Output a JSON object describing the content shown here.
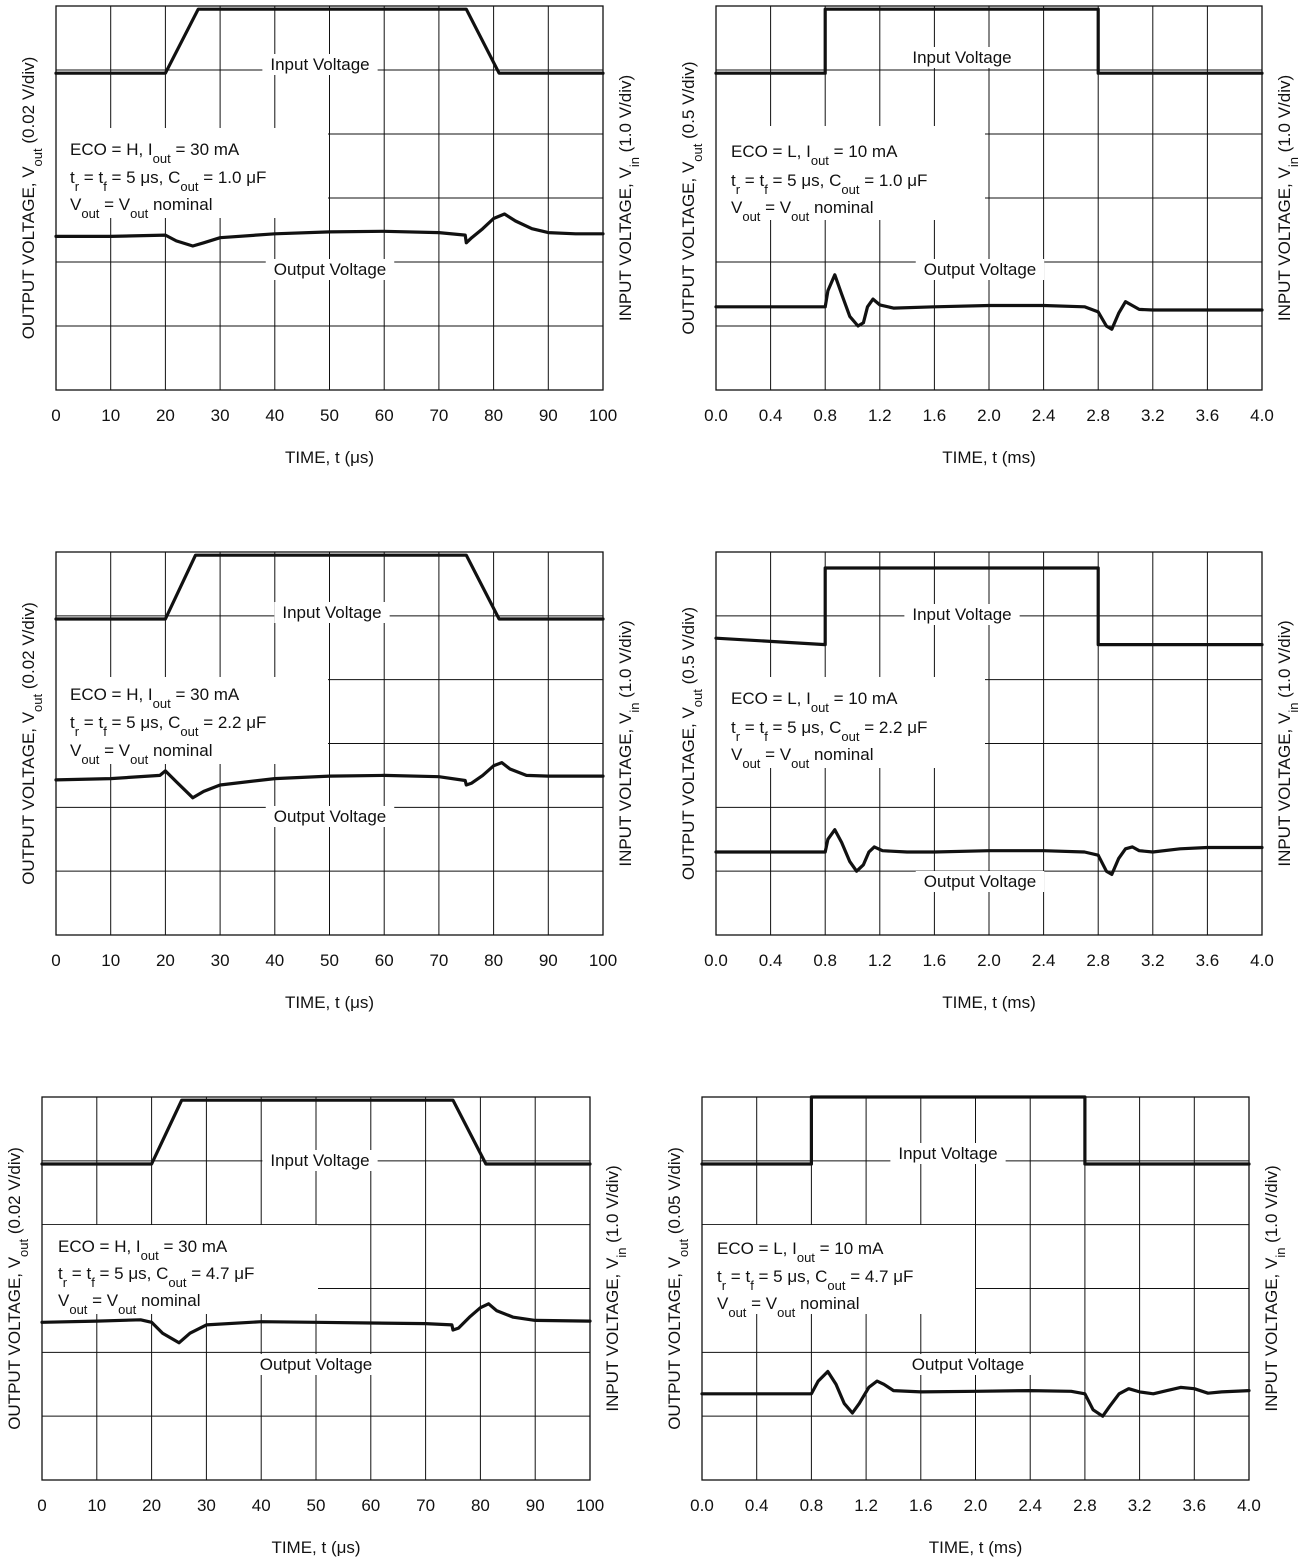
{
  "chart_data": [
    {
      "type": "line",
      "title": "",
      "xlabel": "TIME, t (μs)",
      "ylabel_left": {
        "main": "OUTPUT VOLTAGE, V",
        "sub": "out",
        "tail": " (0.02 V/div)"
      },
      "ylabel_right": {
        "main": "INPUT VOLTAGE, V",
        "sub": "in",
        "tail": " (1.0 V/div)"
      },
      "x_ticks": [
        "0",
        "10",
        "20",
        "30",
        "40",
        "50",
        "60",
        "70",
        "80",
        "90",
        "100"
      ],
      "xlim": [
        0,
        100
      ],
      "ylim": [
        0,
        6
      ],
      "grid": true,
      "annotation": [
        [
          {
            "t": "ECO = H, I"
          },
          {
            "t": "out",
            "sub": true
          },
          {
            "t": " = 30 mA"
          }
        ],
        [
          {
            "t": "t"
          },
          {
            "t": "r",
            "sub": true
          },
          {
            "t": " = t"
          },
          {
            "t": "f",
            "sub": true
          },
          {
            "t": " = 5 μs, C"
          },
          {
            "t": "out",
            "sub": true
          },
          {
            "t": " = 1.0 μF"
          }
        ],
        [
          {
            "t": "V"
          },
          {
            "t": "out",
            "sub": true
          },
          {
            "t": " = V"
          },
          {
            "t": "out",
            "sub": true
          },
          {
            "t": " nominal"
          }
        ]
      ],
      "series": [
        {
          "name": "Input Voltage",
          "x": [
            0,
            20,
            26,
            75,
            81,
            100
          ],
          "y": [
            4.95,
            4.95,
            5.95,
            5.95,
            4.95,
            4.95
          ]
        },
        {
          "name": "Output Voltage",
          "x": [
            0,
            10,
            20,
            22,
            25,
            27,
            30,
            40,
            50,
            60,
            70,
            74.8,
            75,
            76,
            78,
            80,
            82,
            84,
            87,
            90,
            95,
            100
          ],
          "y": [
            2.4,
            2.4,
            2.42,
            2.33,
            2.25,
            2.3,
            2.38,
            2.44,
            2.47,
            2.48,
            2.46,
            2.42,
            2.3,
            2.38,
            2.52,
            2.68,
            2.75,
            2.64,
            2.52,
            2.46,
            2.44,
            2.44
          ]
        }
      ]
    },
    {
      "type": "line",
      "title": "",
      "xlabel": "TIME, t (ms)",
      "ylabel_left": {
        "main": "OUTPUT VOLTAGE, V",
        "sub": "out",
        "tail": " (0.5 V/div)"
      },
      "ylabel_right": {
        "main": "INPUT VOLTAGE, V",
        "sub": "in",
        "tail": " (1.0 V/div)"
      },
      "x_ticks": [
        "0.0",
        "0.4",
        "0.8",
        "1.2",
        "1.6",
        "2.0",
        "2.4",
        "2.8",
        "3.2",
        "3.6",
        "4.0"
      ],
      "xlim": [
        0,
        4.0
      ],
      "ylim": [
        0,
        6
      ],
      "grid": true,
      "annotation": [
        [
          {
            "t": "ECO = L, I"
          },
          {
            "t": "out",
            "sub": true
          },
          {
            "t": " = 10 mA"
          }
        ],
        [
          {
            "t": "t"
          },
          {
            "t": "r",
            "sub": true
          },
          {
            "t": " = t"
          },
          {
            "t": "f",
            "sub": true
          },
          {
            "t": " = 5 μs, C"
          },
          {
            "t": "out",
            "sub": true
          },
          {
            "t": " = 1.0 μF"
          }
        ],
        [
          {
            "t": "V"
          },
          {
            "t": "out",
            "sub": true
          },
          {
            "t": " = V"
          },
          {
            "t": "out",
            "sub": true
          },
          {
            "t": " nominal"
          }
        ]
      ],
      "series": [
        {
          "name": "Input Voltage",
          "x": [
            0,
            0.8,
            0.8,
            2.8,
            2.8,
            4.0
          ],
          "y": [
            4.95,
            4.95,
            5.95,
            5.95,
            4.95,
            4.95
          ]
        },
        {
          "name": "Output Voltage",
          "x": [
            0,
            0.4,
            0.8,
            0.82,
            0.87,
            0.92,
            0.98,
            1.04,
            1.08,
            1.11,
            1.15,
            1.2,
            1.3,
            1.6,
            2.0,
            2.4,
            2.7,
            2.8,
            2.86,
            2.9,
            2.95,
            3.0,
            3.05,
            3.1,
            3.2,
            3.6,
            4.0
          ],
          "y": [
            1.3,
            1.3,
            1.3,
            1.55,
            1.8,
            1.5,
            1.15,
            1.0,
            1.05,
            1.3,
            1.42,
            1.33,
            1.28,
            1.3,
            1.32,
            1.32,
            1.3,
            1.22,
            1.0,
            0.95,
            1.2,
            1.38,
            1.32,
            1.26,
            1.25,
            1.25,
            1.25
          ]
        }
      ]
    },
    {
      "type": "line",
      "title": "",
      "xlabel": "TIME, t (μs)",
      "ylabel_left": {
        "main": "OUTPUT VOLTAGE, V",
        "sub": "out",
        "tail": " (0.02 V/div)"
      },
      "ylabel_right": {
        "main": "INPUT VOLTAGE, V",
        "sub": "in",
        "tail": " (1.0 V/div)"
      },
      "x_ticks": [
        "0",
        "10",
        "20",
        "30",
        "40",
        "50",
        "60",
        "70",
        "80",
        "90",
        "100"
      ],
      "xlim": [
        0,
        100
      ],
      "ylim": [
        0,
        6
      ],
      "grid": true,
      "annotation": [
        [
          {
            "t": "ECO = H, I"
          },
          {
            "t": "out",
            "sub": true
          },
          {
            "t": " = 30 mA"
          }
        ],
        [
          {
            "t": "t"
          },
          {
            "t": "r",
            "sub": true
          },
          {
            "t": " = t"
          },
          {
            "t": "f",
            "sub": true
          },
          {
            "t": " = 5 μs, C"
          },
          {
            "t": "out",
            "sub": true
          },
          {
            "t": " = 2.2 μF"
          }
        ],
        [
          {
            "t": "V"
          },
          {
            "t": "out",
            "sub": true
          },
          {
            "t": " = V"
          },
          {
            "t": "out",
            "sub": true
          },
          {
            "t": " nominal"
          }
        ]
      ],
      "series": [
        {
          "name": "Input Voltage",
          "x": [
            0,
            20,
            25.5,
            75,
            81,
            100
          ],
          "y": [
            4.95,
            4.95,
            5.95,
            5.95,
            4.95,
            4.95
          ]
        },
        {
          "name": "Output Voltage",
          "x": [
            0,
            10,
            19,
            20,
            22,
            25,
            27,
            30,
            40,
            50,
            60,
            70,
            74.8,
            75,
            76,
            78,
            80,
            81.5,
            83,
            86,
            90,
            100
          ],
          "y": [
            2.43,
            2.45,
            2.5,
            2.57,
            2.4,
            2.15,
            2.25,
            2.35,
            2.45,
            2.49,
            2.5,
            2.48,
            2.42,
            2.35,
            2.38,
            2.5,
            2.65,
            2.7,
            2.6,
            2.5,
            2.49,
            2.49
          ]
        }
      ]
    },
    {
      "type": "line",
      "title": "",
      "xlabel": "TIME, t (ms)",
      "ylabel_left": {
        "main": "OUTPUT VOLTAGE, V",
        "sub": "out",
        "tail": " (0.5 V/div)"
      },
      "ylabel_right": {
        "main": "INPUT VOLTAGE, V",
        "sub": "in",
        "tail": " (1.0 V/div)"
      },
      "x_ticks": [
        "0.0",
        "0.4",
        "0.8",
        "1.2",
        "1.6",
        "2.0",
        "2.4",
        "2.8",
        "3.2",
        "3.6",
        "4.0"
      ],
      "xlim": [
        0,
        4.0
      ],
      "ylim": [
        0,
        6
      ],
      "grid": true,
      "annotation": [
        [
          {
            "t": "ECO = L, I"
          },
          {
            "t": "out",
            "sub": true
          },
          {
            "t": " = 10 mA"
          }
        ],
        [
          {
            "t": "t"
          },
          {
            "t": "r",
            "sub": true
          },
          {
            "t": " = t"
          },
          {
            "t": "f",
            "sub": true
          },
          {
            "t": " = 5 μs, C"
          },
          {
            "t": "out",
            "sub": true
          },
          {
            "t": " = 2.2 μF"
          }
        ],
        [
          {
            "t": "V"
          },
          {
            "t": "out",
            "sub": true
          },
          {
            "t": " = V"
          },
          {
            "t": "out",
            "sub": true
          },
          {
            "t": " nominal"
          }
        ]
      ],
      "series": [
        {
          "name": "Input Voltage",
          "x": [
            0,
            0.8,
            0.8,
            2.8,
            2.8,
            4.0
          ],
          "y": [
            4.65,
            4.55,
            5.75,
            5.75,
            4.55,
            4.55
          ]
        },
        {
          "name": "Output Voltage",
          "x": [
            0,
            0.4,
            0.8,
            0.82,
            0.87,
            0.92,
            0.98,
            1.03,
            1.08,
            1.12,
            1.16,
            1.22,
            1.4,
            1.6,
            2.0,
            2.4,
            2.7,
            2.8,
            2.86,
            2.9,
            2.95,
            3.0,
            3.05,
            3.1,
            3.2,
            3.4,
            3.6,
            4.0
          ],
          "y": [
            1.3,
            1.3,
            1.3,
            1.5,
            1.65,
            1.45,
            1.15,
            1.0,
            1.1,
            1.3,
            1.38,
            1.32,
            1.3,
            1.3,
            1.32,
            1.32,
            1.3,
            1.25,
            1.0,
            0.95,
            1.2,
            1.35,
            1.38,
            1.32,
            1.3,
            1.35,
            1.37,
            1.37
          ]
        }
      ]
    },
    {
      "type": "line",
      "title": "",
      "xlabel": "TIME, t (μs)",
      "ylabel_left": {
        "main": "OUTPUT VOLTAGE, V",
        "sub": "out",
        "tail": " (0.02 V/div)"
      },
      "ylabel_right": {
        "main": "INPUT VOLTAGE, V",
        "sub": "in",
        "tail": " (1.0 V/div)"
      },
      "x_ticks": [
        "0",
        "10",
        "20",
        "30",
        "40",
        "50",
        "60",
        "70",
        "80",
        "90",
        "100"
      ],
      "xlim": [
        0,
        100
      ],
      "ylim": [
        0,
        6
      ],
      "grid": true,
      "annotation": [
        [
          {
            "t": "ECO = H, I"
          },
          {
            "t": "out",
            "sub": true
          },
          {
            "t": " = 30 mA"
          }
        ],
        [
          {
            "t": "t"
          },
          {
            "t": "r",
            "sub": true
          },
          {
            "t": " = t"
          },
          {
            "t": "f",
            "sub": true
          },
          {
            "t": " = 5 μs, C"
          },
          {
            "t": "out",
            "sub": true
          },
          {
            "t": " = 4.7 μF"
          }
        ],
        [
          {
            "t": "V"
          },
          {
            "t": "out",
            "sub": true
          },
          {
            "t": " = V"
          },
          {
            "t": "out",
            "sub": true
          },
          {
            "t": " nominal"
          }
        ]
      ],
      "series": [
        {
          "name": "Input Voltage",
          "x": [
            0,
            20,
            25.5,
            75,
            81,
            100
          ],
          "y": [
            4.95,
            4.95,
            5.95,
            5.95,
            4.95,
            4.95
          ]
        },
        {
          "name": "Output Voltage",
          "x": [
            0,
            10,
            18,
            20,
            22,
            25,
            27,
            30,
            40,
            50,
            60,
            70,
            74.8,
            75,
            76,
            78,
            80,
            81.5,
            83,
            86,
            90,
            100
          ],
          "y": [
            2.47,
            2.49,
            2.51,
            2.47,
            2.3,
            2.15,
            2.3,
            2.43,
            2.48,
            2.47,
            2.46,
            2.45,
            2.43,
            2.35,
            2.38,
            2.55,
            2.7,
            2.76,
            2.65,
            2.55,
            2.5,
            2.49
          ]
        }
      ]
    },
    {
      "type": "line",
      "title": "",
      "xlabel": "TIME, t (ms)",
      "ylabel_left": {
        "main": "OUTPUT VOLTAGE, V",
        "sub": "out",
        "tail": " (0.05 V/div)"
      },
      "ylabel_right": {
        "main": "INPUT VOLTAGE, V",
        "sub": "in",
        "tail": " (1.0 V/div)"
      },
      "x_ticks": [
        "0.0",
        "0.4",
        "0.8",
        "1.2",
        "1.6",
        "2.0",
        "2.4",
        "2.8",
        "3.2",
        "3.6",
        "4.0"
      ],
      "xlim": [
        0,
        4.0
      ],
      "ylim": [
        0,
        6
      ],
      "grid": true,
      "annotation": [
        [
          {
            "t": "ECO = L, I"
          },
          {
            "t": "out",
            "sub": true
          },
          {
            "t": " = 10 mA"
          }
        ],
        [
          {
            "t": "t"
          },
          {
            "t": "r",
            "sub": true
          },
          {
            "t": " = t"
          },
          {
            "t": "f",
            "sub": true
          },
          {
            "t": " = 5 μs, C"
          },
          {
            "t": "out",
            "sub": true
          },
          {
            "t": " = 4.7 μF"
          }
        ],
        [
          {
            "t": "V"
          },
          {
            "t": "out",
            "sub": true
          },
          {
            "t": " = V"
          },
          {
            "t": "out",
            "sub": true
          },
          {
            "t": " nominal"
          }
        ]
      ],
      "series": [
        {
          "name": "Input Voltage",
          "x": [
            0,
            0.8,
            0.8,
            2.8,
            2.8,
            4.0
          ],
          "y": [
            4.95,
            4.95,
            6.0,
            6.0,
            4.95,
            4.95
          ]
        },
        {
          "name": "Output Voltage",
          "x": [
            0,
            0.4,
            0.8,
            0.85,
            0.92,
            0.98,
            1.04,
            1.1,
            1.15,
            1.22,
            1.28,
            1.33,
            1.4,
            1.6,
            2.0,
            2.4,
            2.7,
            2.8,
            2.86,
            2.93,
            2.98,
            3.05,
            3.12,
            3.2,
            3.3,
            3.4,
            3.5,
            3.6,
            3.7,
            3.8,
            4.0
          ],
          "y": [
            1.35,
            1.35,
            1.35,
            1.55,
            1.7,
            1.5,
            1.2,
            1.05,
            1.2,
            1.45,
            1.55,
            1.5,
            1.4,
            1.38,
            1.39,
            1.4,
            1.39,
            1.35,
            1.1,
            1.0,
            1.15,
            1.35,
            1.43,
            1.38,
            1.35,
            1.4,
            1.45,
            1.43,
            1.36,
            1.38,
            1.4
          ]
        }
      ]
    }
  ]
}
